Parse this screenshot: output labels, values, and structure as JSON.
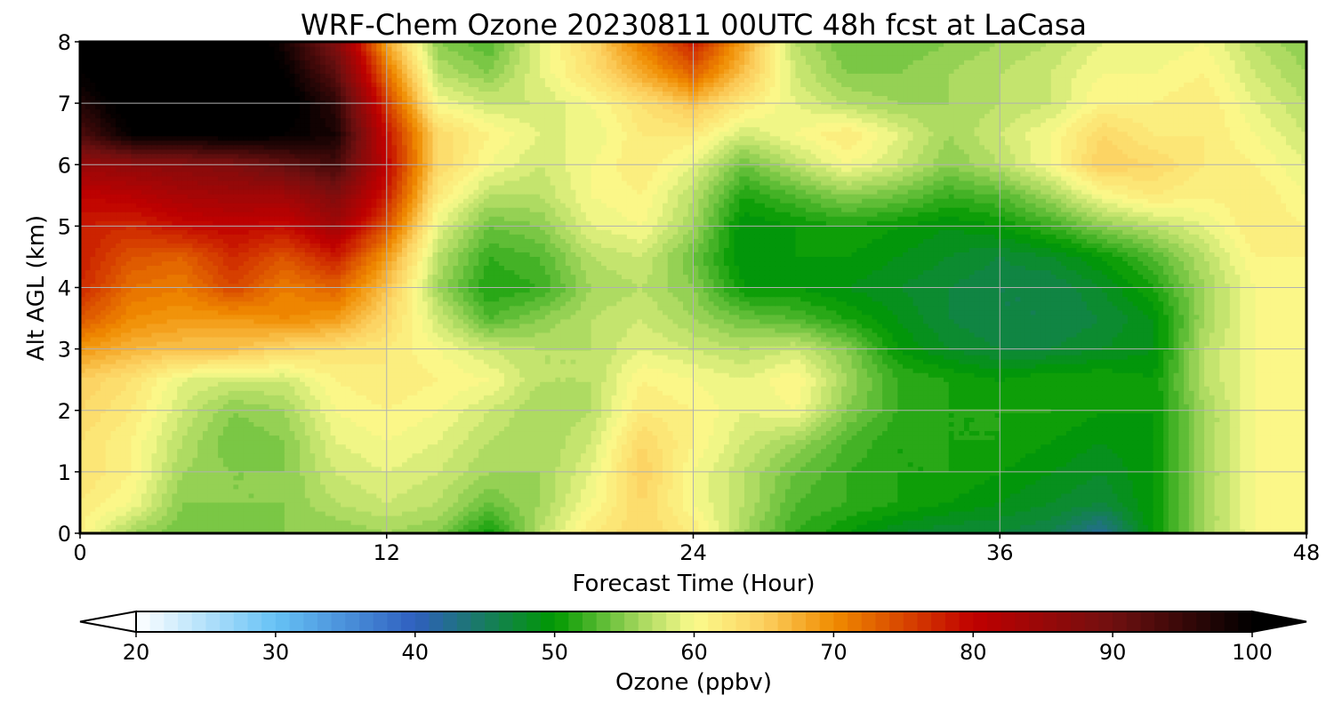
{
  "chart_data": {
    "type": "heatmap",
    "title": "WRF-Chem Ozone  20230811 00UTC 48h fcst at LaCasa",
    "xlabel": "Forecast Time (Hour)",
    "ylabel": "Alt AGL (km)",
    "xlim": [
      0,
      48
    ],
    "ylim": [
      0,
      8
    ],
    "x_ticks": [
      0,
      12,
      24,
      36,
      48
    ],
    "y_ticks": [
      0,
      1,
      2,
      3,
      4,
      5,
      6,
      7,
      8
    ],
    "grid": true,
    "colorbar": {
      "label": "Ozone  (ppbv)",
      "min": 20,
      "max": 100,
      "ticks": [
        20,
        30,
        40,
        50,
        60,
        70,
        80,
        90,
        100
      ],
      "extend": "both",
      "stops": [
        {
          "value": 20,
          "color": "#ffffff"
        },
        {
          "value": 30,
          "color": "#66c2f5"
        },
        {
          "value": 40,
          "color": "#2f5fbf"
        },
        {
          "value": 50,
          "color": "#009900"
        },
        {
          "value": 56,
          "color": "#a3d65c"
        },
        {
          "value": 60,
          "color": "#fbfb8c"
        },
        {
          "value": 65,
          "color": "#fcd060"
        },
        {
          "value": 70,
          "color": "#f08c00"
        },
        {
          "value": 80,
          "color": "#c00000"
        },
        {
          "value": 90,
          "color": "#701010"
        },
        {
          "value": 100,
          "color": "#000000"
        }
      ],
      "under_color": "#ffffff",
      "over_color": "#000000"
    },
    "x": [
      0,
      2,
      4,
      6,
      8,
      10,
      12,
      14,
      16,
      18,
      20,
      22,
      24,
      26,
      28,
      30,
      32,
      34,
      36,
      38,
      40,
      42,
      44,
      46,
      48
    ],
    "y": [
      0,
      0.5,
      1,
      1.5,
      2,
      2.5,
      3,
      3.5,
      4,
      4.5,
      5,
      5.5,
      6,
      6.5,
      7,
      7.5,
      8
    ],
    "z": [
      [
        61,
        56,
        54,
        54,
        55,
        55,
        56,
        55,
        50,
        57,
        62,
        64,
        62,
        56,
        52,
        50,
        48,
        47,
        47,
        46,
        42,
        50,
        56,
        60,
        61
      ],
      [
        62,
        60,
        55,
        55,
        55,
        57,
        58,
        57,
        54,
        56,
        60,
        64,
        60,
        57,
        53,
        52,
        51,
        50,
        49,
        48,
        47,
        50,
        56,
        60,
        61
      ],
      [
        63,
        61,
        56,
        55,
        55,
        58,
        59,
        58,
        56,
        56,
        59,
        65,
        60,
        57,
        54,
        52,
        51,
        51,
        50,
        49,
        48,
        50,
        56,
        60,
        61
      ],
      [
        63,
        61,
        57,
        54,
        55,
        59,
        60,
        59,
        57,
        56,
        58,
        64,
        61,
        58,
        56,
        53,
        51,
        51,
        51,
        50,
        49,
        50,
        56,
        60,
        61
      ],
      [
        64,
        62,
        58,
        55,
        56,
        60,
        61,
        60,
        58,
        56,
        57,
        62,
        61,
        59,
        60,
        55,
        52,
        51,
        51,
        51,
        50,
        50,
        56,
        60,
        61
      ],
      [
        65,
        63,
        59,
        58,
        58,
        61,
        62,
        61,
        60,
        57,
        57,
        61,
        60,
        59,
        61,
        56,
        52,
        51,
        50,
        51,
        51,
        50,
        57,
        60,
        61
      ],
      [
        69,
        67,
        66,
        66,
        64,
        63,
        62,
        60,
        58,
        57,
        57,
        59,
        58,
        57,
        58,
        55,
        50,
        48,
        47,
        47,
        48,
        49,
        57,
        60,
        61
      ],
      [
        74,
        70,
        69,
        69,
        70,
        69,
        64,
        58,
        53,
        55,
        57,
        58,
        56,
        54,
        53,
        51,
        49,
        47,
        46,
        46,
        47,
        49,
        56,
        60,
        61
      ],
      [
        77,
        72,
        71,
        75,
        71,
        73,
        66,
        56,
        51,
        52,
        56,
        57,
        55,
        50,
        50,
        49,
        48,
        47,
        46,
        46,
        48,
        51,
        56,
        60,
        61
      ],
      [
        78,
        74,
        73,
        77,
        74,
        78,
        69,
        57,
        52,
        53,
        57,
        58,
        54,
        49,
        50,
        50,
        49,
        48,
        47,
        48,
        50,
        53,
        57,
        61,
        61
      ],
      [
        78,
        77,
        79,
        80,
        79,
        84,
        74,
        59,
        54,
        55,
        59,
        60,
        56,
        49,
        50,
        51,
        50,
        49,
        50,
        52,
        55,
        57,
        59,
        62,
        61
      ],
      [
        80,
        81,
        83,
        84,
        84,
        88,
        78,
        62,
        57,
        57,
        60,
        61,
        57,
        51,
        53,
        55,
        54,
        52,
        53,
        56,
        60,
        62,
        61,
        62,
        60
      ],
      [
        85,
        86,
        87,
        88,
        91,
        94,
        80,
        64,
        60,
        58,
        60,
        62,
        59,
        54,
        57,
        60,
        58,
        55,
        57,
        60,
        65,
        64,
        62,
        61,
        59
      ],
      [
        93,
        100,
        100,
        101,
        100,
        98,
        79,
        64,
        61,
        59,
        59,
        62,
        62,
        58,
        60,
        62,
        59,
        56,
        58,
        60,
        64,
        62,
        62,
        60,
        58
      ],
      [
        97,
        102,
        103,
        104,
        102,
        96,
        76,
        60,
        58,
        58,
        60,
        63,
        66,
        62,
        59,
        57,
        56,
        56,
        57,
        58,
        61,
        61,
        62,
        59,
        57
      ],
      [
        100,
        104,
        105,
        104,
        100,
        92,
        72,
        57,
        55,
        59,
        63,
        68,
        73,
        66,
        58,
        55,
        55,
        56,
        57,
        58,
        60,
        60,
        61,
        58,
        56
      ],
      [
        102,
        106,
        106,
        105,
        98,
        88,
        68,
        55,
        53,
        59,
        64,
        71,
        78,
        68,
        57,
        54,
        54,
        55,
        56,
        57,
        59,
        59,
        60,
        57,
        55
      ]
    ]
  }
}
